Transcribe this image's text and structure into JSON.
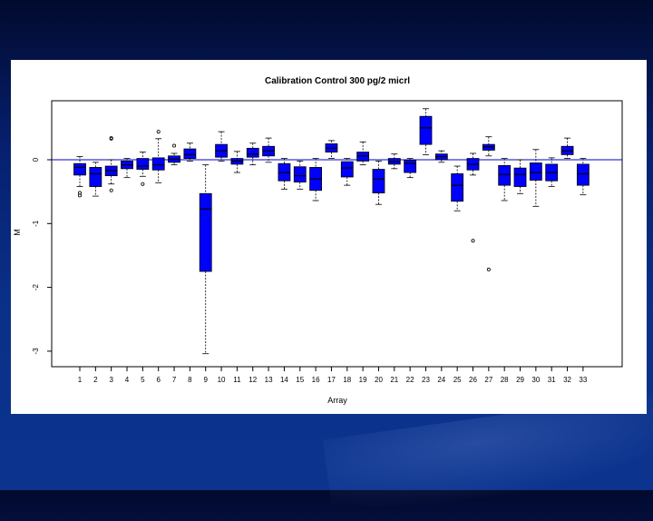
{
  "chart_data": {
    "type": "box",
    "title": "Calibration Control 300 pg/2 micrl",
    "xlabel": "Array",
    "ylabel": "M",
    "ylim": [
      -3.2,
      0.9
    ],
    "y_ticks": [
      0,
      -1,
      -2,
      -3
    ],
    "reference_line": 0,
    "box_color": "#0000ff",
    "line_color": "#0000cc",
    "categories": [
      "1",
      "2",
      "3",
      "4",
      "5",
      "6",
      "7",
      "8",
      "9",
      "10",
      "11",
      "12",
      "13",
      "14",
      "15",
      "16",
      "17",
      "18",
      "19",
      "20",
      "21",
      "22",
      "23",
      "24",
      "25",
      "26",
      "27",
      "28",
      "29",
      "30",
      "31",
      "32",
      "33"
    ],
    "boxes": [
      {
        "q1": -0.24,
        "median": -0.12,
        "q3": -0.06,
        "lo": -0.42,
        "hi": 0.05,
        "outliers": [
          -0.52,
          -0.56
        ]
      },
      {
        "q1": -0.42,
        "median": -0.22,
        "q3": -0.12,
        "lo": -0.57,
        "hi": -0.04,
        "outliers": []
      },
      {
        "q1": -0.25,
        "median": -0.17,
        "q3": -0.1,
        "lo": -0.38,
        "hi": 0.0,
        "outliers": [
          0.33,
          0.34,
          -0.48
        ]
      },
      {
        "q1": -0.14,
        "median": -0.08,
        "q3": -0.02,
        "lo": -0.28,
        "hi": 0.02,
        "outliers": []
      },
      {
        "q1": -0.15,
        "median": -0.1,
        "q3": 0.02,
        "lo": -0.26,
        "hi": 0.12,
        "outliers": [
          -0.38
        ]
      },
      {
        "q1": -0.16,
        "median": -0.08,
        "q3": 0.03,
        "lo": -0.36,
        "hi": 0.33,
        "outliers": [
          0.44
        ]
      },
      {
        "q1": -0.04,
        "median": 0.01,
        "q3": 0.06,
        "lo": -0.08,
        "hi": 0.1,
        "outliers": [
          0.22
        ]
      },
      {
        "q1": 0.02,
        "median": 0.08,
        "q3": 0.17,
        "lo": -0.02,
        "hi": 0.26,
        "outliers": []
      },
      {
        "q1": -1.75,
        "median": -0.77,
        "q3": -0.53,
        "lo": -3.04,
        "hi": -0.08,
        "outliers": []
      },
      {
        "q1": 0.04,
        "median": 0.14,
        "q3": 0.24,
        "lo": -0.02,
        "hi": 0.44,
        "outliers": []
      },
      {
        "q1": -0.07,
        "median": -0.02,
        "q3": 0.02,
        "lo": -0.2,
        "hi": 0.13,
        "outliers": []
      },
      {
        "q1": 0.04,
        "median": 0.09,
        "q3": 0.18,
        "lo": -0.08,
        "hi": 0.26,
        "outliers": []
      },
      {
        "q1": 0.06,
        "median": 0.14,
        "q3": 0.21,
        "lo": -0.04,
        "hi": 0.34,
        "outliers": []
      },
      {
        "q1": -0.33,
        "median": -0.2,
        "q3": -0.06,
        "lo": -0.46,
        "hi": 0.02,
        "outliers": []
      },
      {
        "q1": -0.35,
        "median": -0.25,
        "q3": -0.11,
        "lo": -0.46,
        "hi": -0.02,
        "outliers": []
      },
      {
        "q1": -0.48,
        "median": -0.3,
        "q3": -0.12,
        "lo": -0.64,
        "hi": 0.02,
        "outliers": []
      },
      {
        "q1": 0.12,
        "median": 0.18,
        "q3": 0.25,
        "lo": 0.02,
        "hi": 0.3,
        "outliers": []
      },
      {
        "q1": -0.27,
        "median": -0.13,
        "q3": -0.03,
        "lo": -0.4,
        "hi": 0.02,
        "outliers": []
      },
      {
        "q1": -0.02,
        "median": 0.06,
        "q3": 0.12,
        "lo": -0.08,
        "hi": 0.28,
        "outliers": []
      },
      {
        "q1": -0.52,
        "median": -0.3,
        "q3": -0.15,
        "lo": -0.7,
        "hi": -0.02,
        "outliers": []
      },
      {
        "q1": -0.07,
        "median": -0.03,
        "q3": 0.02,
        "lo": -0.14,
        "hi": 0.09,
        "outliers": []
      },
      {
        "q1": -0.2,
        "median": -0.06,
        "q3": -0.01,
        "lo": -0.28,
        "hi": 0.02,
        "outliers": []
      },
      {
        "q1": 0.24,
        "median": 0.5,
        "q3": 0.68,
        "lo": 0.08,
        "hi": 0.8,
        "outliers": []
      },
      {
        "q1": 0.0,
        "median": 0.05,
        "q3": 0.09,
        "lo": -0.04,
        "hi": 0.14,
        "outliers": []
      },
      {
        "q1": -0.65,
        "median": -0.4,
        "q3": -0.22,
        "lo": -0.8,
        "hi": -0.1,
        "outliers": []
      },
      {
        "q1": -0.16,
        "median": -0.07,
        "q3": 0.02,
        "lo": -0.24,
        "hi": 0.1,
        "outliers": [
          -1.27
        ]
      },
      {
        "q1": 0.15,
        "median": 0.2,
        "q3": 0.24,
        "lo": 0.06,
        "hi": 0.36,
        "outliers": [
          -1.72
        ]
      },
      {
        "q1": -0.4,
        "median": -0.23,
        "q3": -0.09,
        "lo": -0.64,
        "hi": 0.02,
        "outliers": []
      },
      {
        "q1": -0.42,
        "median": -0.23,
        "q3": -0.13,
        "lo": -0.53,
        "hi": 0.0,
        "outliers": []
      },
      {
        "q1": -0.32,
        "median": -0.2,
        "q3": -0.05,
        "lo": -0.73,
        "hi": 0.16,
        "outliers": []
      },
      {
        "q1": -0.33,
        "median": -0.2,
        "q3": -0.07,
        "lo": -0.42,
        "hi": 0.03,
        "outliers": []
      },
      {
        "q1": 0.08,
        "median": 0.14,
        "q3": 0.21,
        "lo": 0.02,
        "hi": 0.34,
        "outliers": []
      },
      {
        "q1": -0.4,
        "median": -0.22,
        "q3": -0.07,
        "lo": -0.55,
        "hi": 0.02,
        "outliers": []
      }
    ]
  }
}
